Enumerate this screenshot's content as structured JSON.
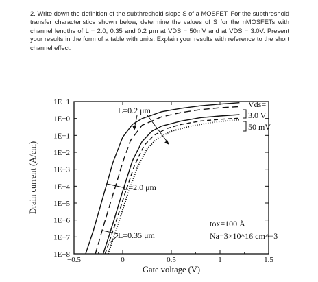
{
  "question": {
    "number": "2.",
    "text": "Write down the definition of the subthreshold slope S of a MOSFET. For the subthreshold transfer characteristics shown below, determine the values of S for the nMOSFETs with channel lengths of L = 2.0, 0.35 and 0.2 μm at VDS = 50mV and at VDS = 3.0V. Present your results in the form of a table with units. Explain your results with reference to the short channel effect."
  },
  "chart_data": {
    "type": "line",
    "xlabel": "Gate voltage (V)",
    "ylabel": "Drain current (A/cm)",
    "xlim": [
      -0.5,
      1.5
    ],
    "ylim_log10": [
      -8,
      1
    ],
    "y_scale": "log",
    "x_ticks": [
      "−0.5",
      "0",
      "0.5",
      "1",
      "1.5"
    ],
    "y_ticks": [
      "1E−8",
      "1E−7",
      "1E−6",
      "1E−5",
      "1E−4",
      "1E−3",
      "1E−2",
      "1E−1",
      "1E+0",
      "1E+1"
    ],
    "grid": false,
    "annotations": {
      "l02": "L=0.2 μm",
      "l20": "L=2.0 μm",
      "l035": "L=0.35 μm",
      "vds_label": "Vds=",
      "vds_high": "3.0 V",
      "vds_low": "50 mV",
      "tox": "tox=100 Å",
      "na": "Na=3×10^16 cm^−3"
    },
    "series": [
      {
        "style": "solid",
        "points": [
          [
            -0.38,
            -8.0
          ],
          [
            -0.3,
            -6.6
          ],
          [
            -0.2,
            -4.6
          ],
          [
            -0.1,
            -2.6
          ],
          [
            0.0,
            -1.1
          ],
          [
            0.1,
            -0.35
          ],
          [
            0.2,
            0.0
          ],
          [
            0.4,
            0.4
          ],
          [
            0.6,
            0.6
          ],
          [
            0.8,
            0.75
          ],
          [
            1.0,
            0.85
          ],
          [
            1.2,
            0.93
          ]
        ]
      },
      {
        "style": "dashed-long",
        "points": [
          [
            -0.28,
            -8.0
          ],
          [
            -0.2,
            -6.4
          ],
          [
            -0.1,
            -4.5
          ],
          [
            0.0,
            -2.6
          ],
          [
            0.08,
            -1.3
          ],
          [
            0.2,
            -0.4
          ],
          [
            0.4,
            0.1
          ],
          [
            0.6,
            0.35
          ],
          [
            0.8,
            0.52
          ],
          [
            1.0,
            0.63
          ],
          [
            1.2,
            0.7
          ]
        ]
      },
      {
        "style": "solid",
        "points": [
          [
            -0.2,
            -8.0
          ],
          [
            -0.1,
            -6.2
          ],
          [
            0.0,
            -4.3
          ],
          [
            0.1,
            -2.5
          ],
          [
            0.2,
            -1.35
          ],
          [
            0.3,
            -0.75
          ],
          [
            0.4,
            -0.45
          ],
          [
            0.6,
            -0.15
          ],
          [
            0.8,
            0.05
          ],
          [
            1.0,
            0.15
          ],
          [
            1.2,
            0.23
          ]
        ]
      },
      {
        "style": "dashed",
        "points": [
          [
            -0.18,
            -8.0
          ],
          [
            -0.08,
            -6.3
          ],
          [
            0.02,
            -4.5
          ],
          [
            0.12,
            -2.8
          ],
          [
            0.22,
            -1.6
          ],
          [
            0.32,
            -1.0
          ],
          [
            0.45,
            -0.6
          ],
          [
            0.6,
            -0.35
          ],
          [
            0.8,
            -0.15
          ],
          [
            1.0,
            -0.05
          ],
          [
            1.2,
            0.02
          ]
        ]
      },
      {
        "style": "dotted",
        "points": [
          [
            -0.15,
            -8.0
          ],
          [
            -0.05,
            -6.3
          ],
          [
            0.05,
            -4.5
          ],
          [
            0.15,
            -2.9
          ],
          [
            0.25,
            -1.8
          ],
          [
            0.35,
            -1.2
          ],
          [
            0.5,
            -0.75
          ],
          [
            0.7,
            -0.45
          ],
          [
            0.9,
            -0.25
          ],
          [
            1.1,
            -0.12
          ],
          [
            1.2,
            -0.08
          ]
        ]
      }
    ]
  }
}
